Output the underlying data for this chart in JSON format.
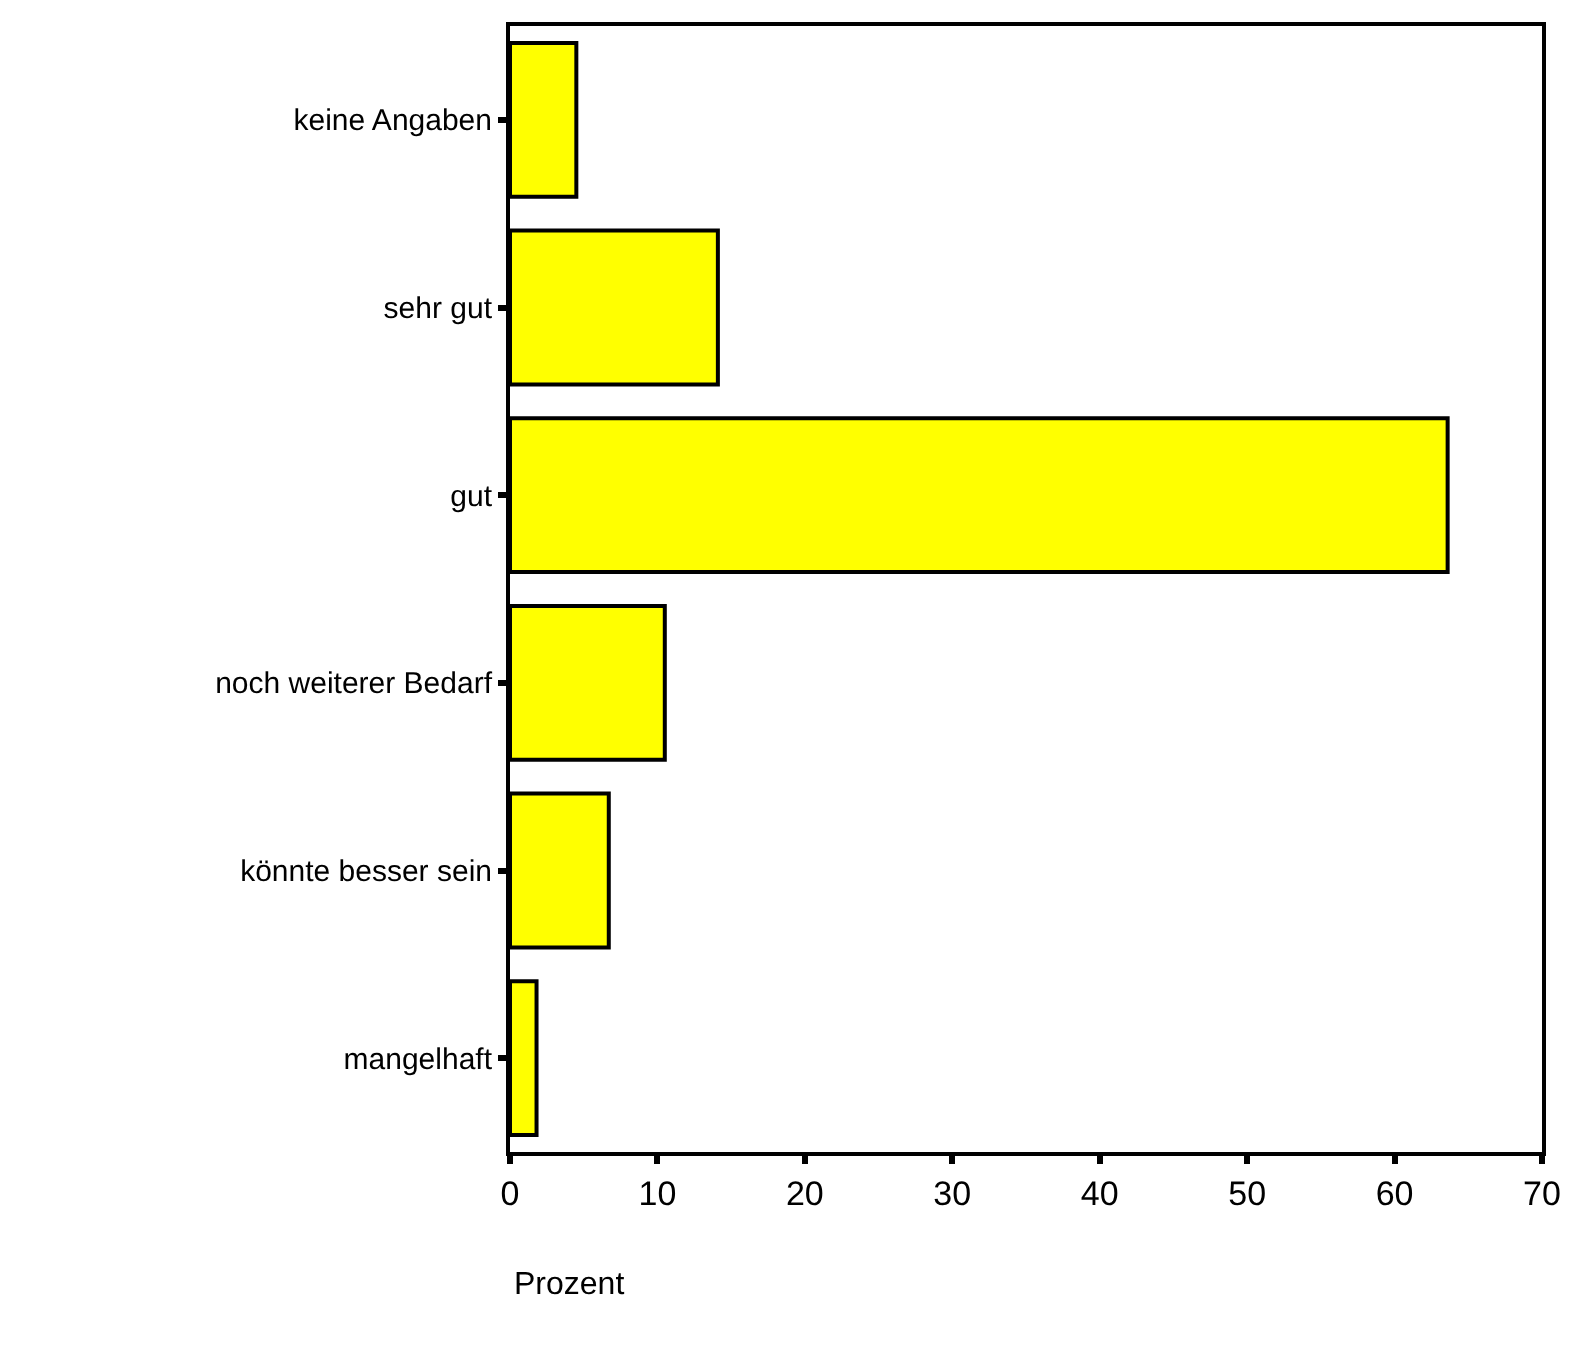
{
  "chart_data": {
    "type": "bar",
    "orientation": "horizontal",
    "xlabel": "Prozent",
    "categories": [
      "keine Angaben",
      "sehr gut",
      "gut",
      "noch weiterer Bedarf",
      "könnte besser sein",
      "mangelhaft"
    ],
    "values": [
      4.5,
      14.1,
      63.6,
      10.5,
      6.7,
      1.8
    ],
    "color": "#ffff00",
    "xlim": [
      0,
      70
    ],
    "xticks": [
      0,
      10,
      20,
      30,
      40,
      50,
      60,
      70
    ]
  }
}
